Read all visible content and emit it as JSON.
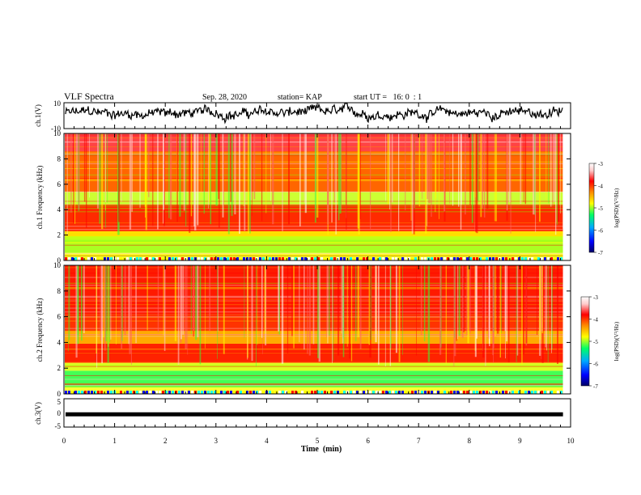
{
  "header": {
    "title": "VLF Spectra",
    "date": "Sep. 28, 2020",
    "station": "station= KAP",
    "start": "start UT =   16: 0  : 1"
  },
  "chart_data": [
    {
      "type": "line",
      "panel": "ch1-waveform",
      "ylabel": "ch.1(V)",
      "ylim": [
        -10,
        10
      ],
      "yticks": [
        "10",
        "-10"
      ],
      "x_range": [
        0,
        9.85
      ],
      "description_note": "noisy waveform centered near +2 V, amplitude about +/-6 V",
      "y_center": 2
    },
    {
      "type": "heatmap",
      "panel": "ch1-spectrogram",
      "ylabel": "ch.1 Frequency (kHz)",
      "ylim": [
        0,
        10
      ],
      "yticks": [
        "0",
        "2",
        "4",
        "6",
        "8",
        "10"
      ],
      "x_range": [
        0,
        9.85
      ],
      "zlabel": "log(PSD)(V²/Hz)",
      "zlim": [
        -7,
        -3
      ],
      "zticks": [
        "-3",
        "-4",
        "-5",
        "-6",
        "-7"
      ]
    },
    {
      "type": "heatmap",
      "panel": "ch2-spectrogram",
      "ylabel": "ch.2 Frequency (kHz)",
      "ylim": [
        0,
        10
      ],
      "yticks": [
        "0",
        "2",
        "4",
        "6",
        "8",
        "10"
      ],
      "x_range": [
        0,
        9.85
      ],
      "zlabel": "log(PSD)(V²/Hz)",
      "zlim": [
        -7,
        -3
      ],
      "zticks": [
        "-3",
        "-4",
        "-5",
        "-6",
        "-7"
      ]
    },
    {
      "type": "line",
      "panel": "ch3-waveform",
      "ylabel": "ch.3(V)",
      "ylim": [
        -5,
        5
      ],
      "yticks": [
        "5",
        "0",
        "-5"
      ],
      "x_range": [
        0,
        9.85
      ],
      "y_center": -0.5
    }
  ],
  "xaxis": {
    "label": "Time  (min)",
    "xlim": [
      0,
      10
    ],
    "ticks": [
      "0",
      "1",
      "2",
      "3",
      "4",
      "5",
      "6",
      "7",
      "8",
      "9",
      "10"
    ]
  },
  "colors": {
    "colormap": [
      "#000066",
      "#0000ff",
      "#00aaff",
      "#00ff66",
      "#88ff00",
      "#ffff00",
      "#ff8800",
      "#ff0000",
      "#ffcccc",
      "#ffffff"
    ],
    "axis": "#000000"
  }
}
